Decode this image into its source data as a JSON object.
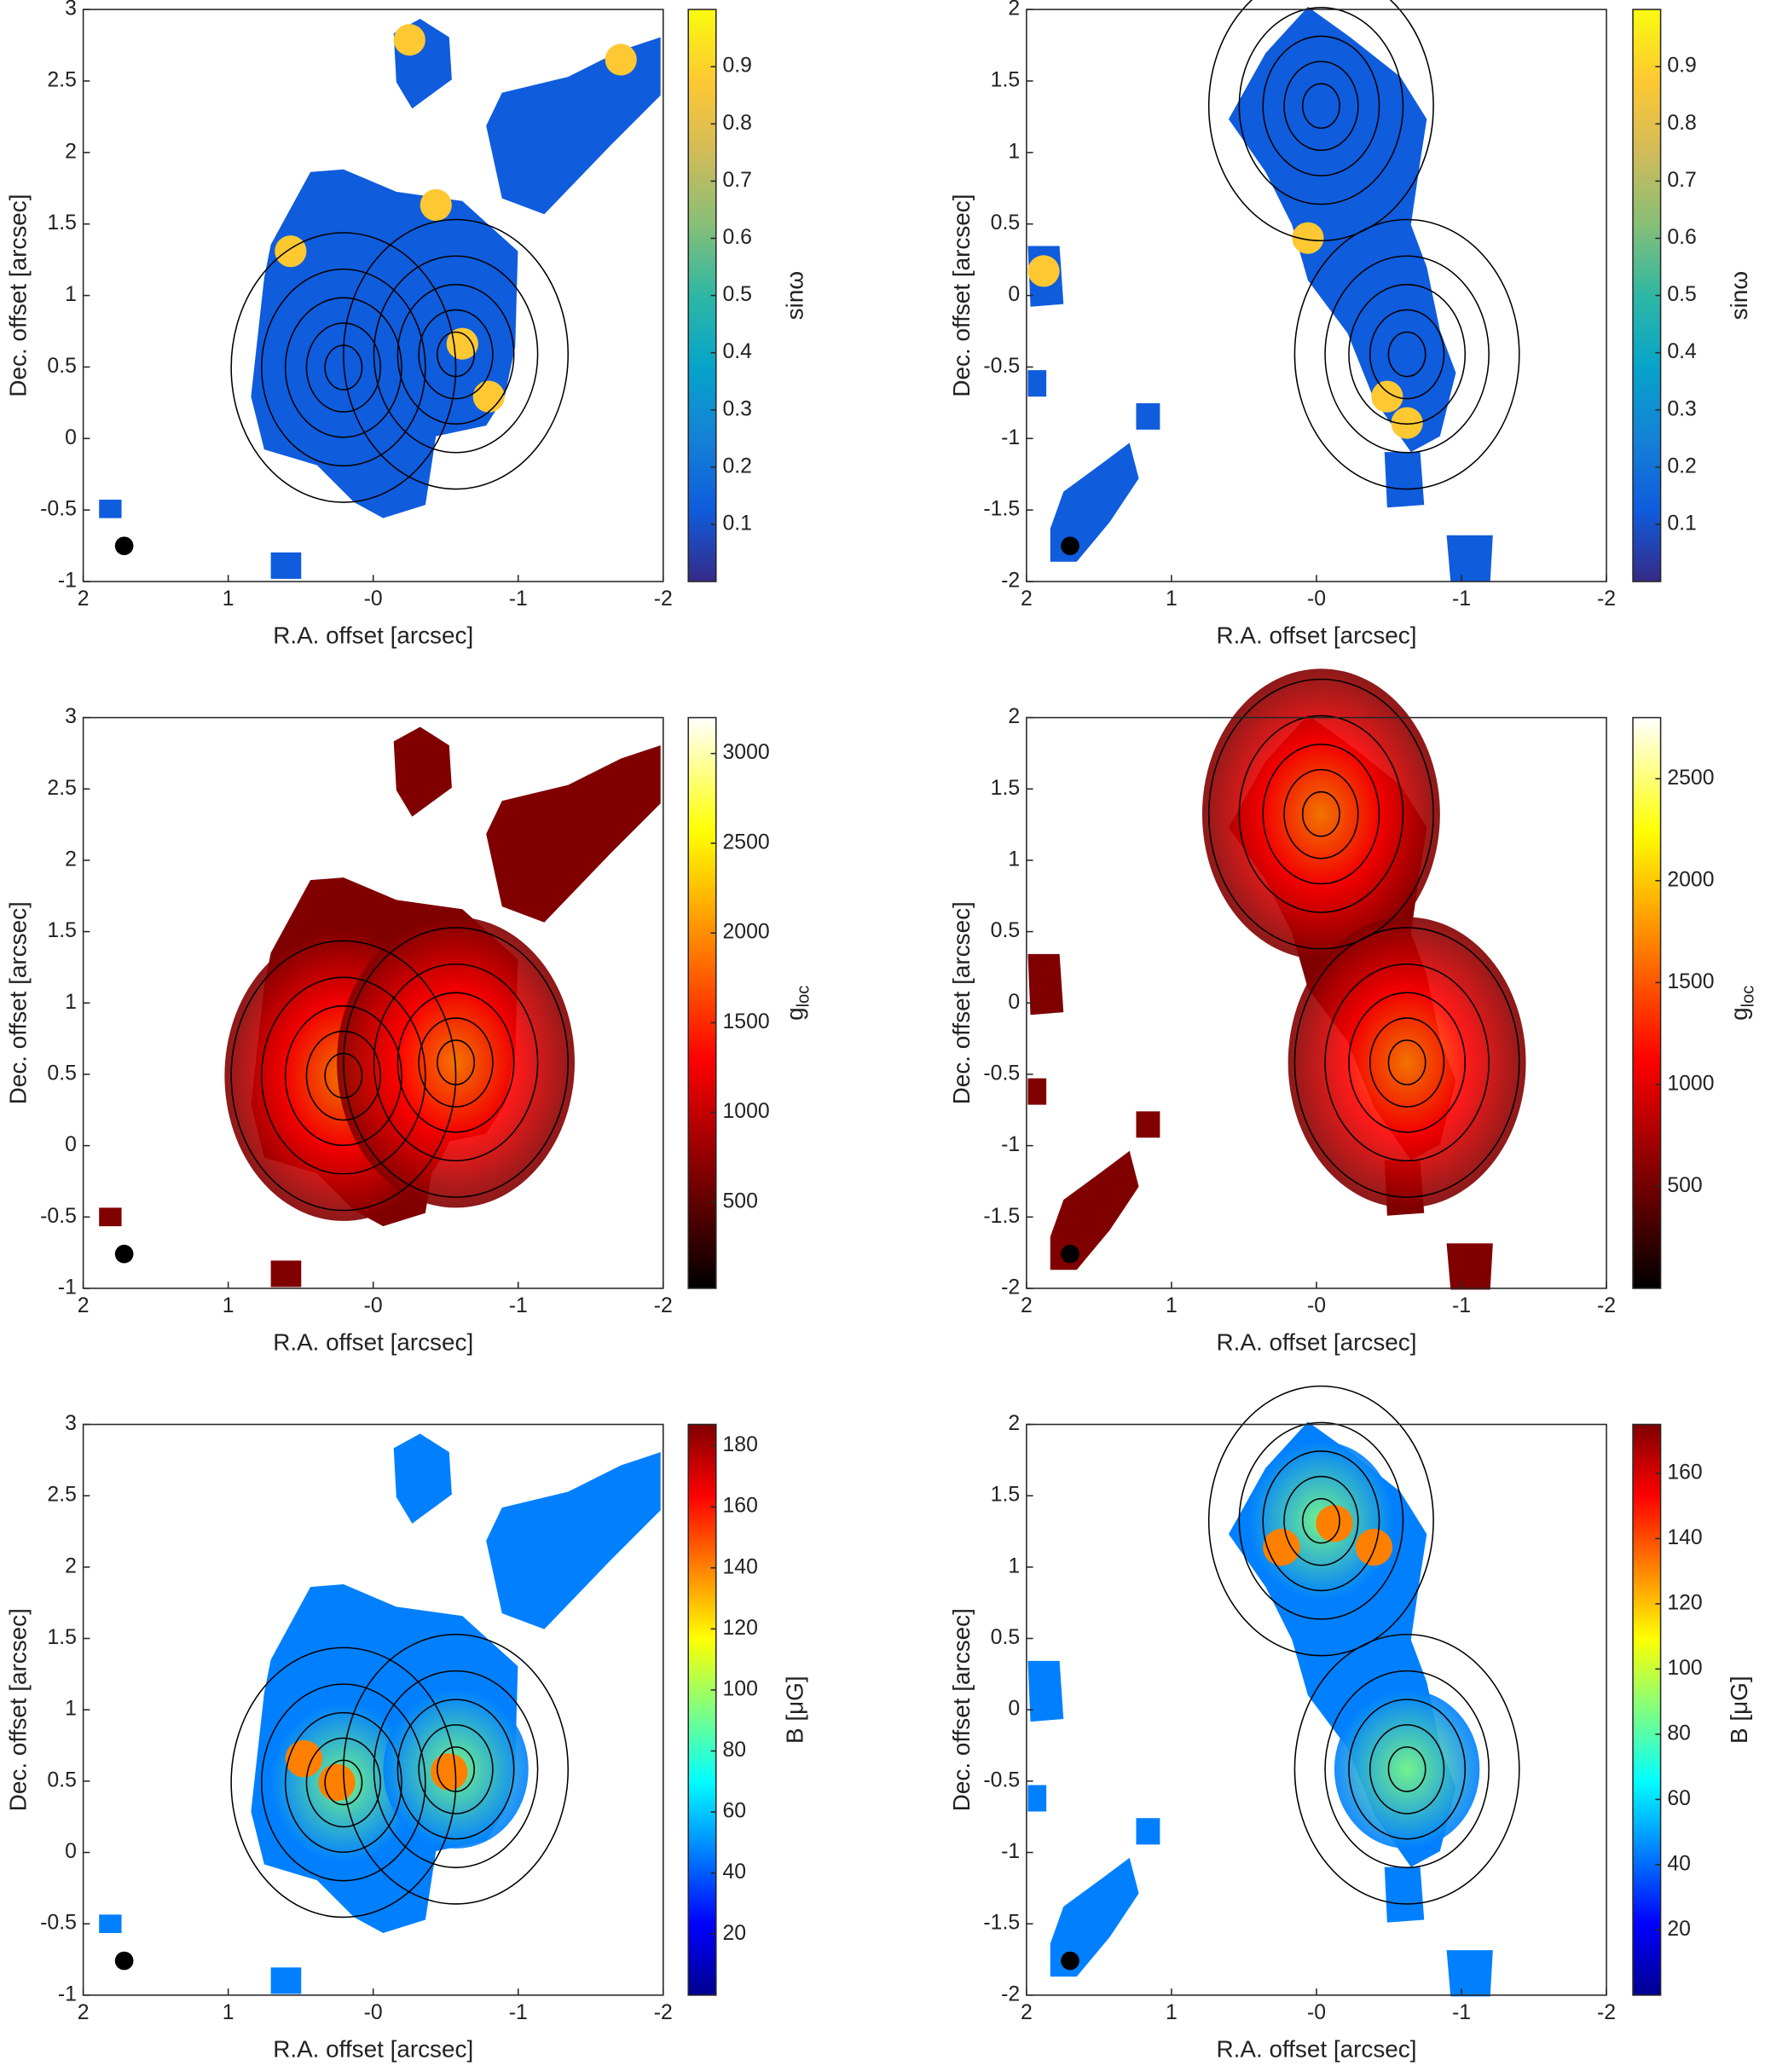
{
  "chart_data": [
    {
      "type": "heatmap",
      "xlabel": "R.A. offset [arcsec]",
      "ylabel": "Dec. offset [arcsec]",
      "colorbar_label": "sinω",
      "xlim": [
        2,
        -2
      ],
      "ylim": [
        -1,
        3
      ],
      "xticks": [
        2,
        1,
        {
          "value": 0,
          "label": "-0"
        },
        -1,
        -2
      ],
      "yticks": [
        -1,
        -0.5,
        0,
        0.5,
        1,
        1.5,
        2,
        2.5,
        3
      ],
      "clim": [
        0,
        1
      ],
      "cticks": [
        0.1,
        0.2,
        0.3,
        0.4,
        0.5,
        0.6,
        0.7,
        0.8,
        0.9
      ],
      "colormap": [
        "#352a87",
        "#0f5cdd",
        "#1481d6",
        "#06a4ca",
        "#2eb7a4",
        "#87bf77",
        "#d1bb59",
        "#fec832",
        "#f9fb0e"
      ]
    },
    {
      "type": "heatmap",
      "xlabel": "R.A. offset [arcsec]",
      "ylabel": "Dec. offset [arcsec]",
      "colorbar_label": "sinω",
      "xlim": [
        2,
        -2
      ],
      "ylim": [
        -2,
        2
      ],
      "xticks": [
        2,
        1,
        {
          "value": 0,
          "label": "-0"
        },
        -1,
        -2
      ],
      "yticks": [
        -2,
        -1.5,
        -1,
        -0.5,
        0,
        0.5,
        1,
        1.5,
        2
      ],
      "clim": [
        0,
        1
      ],
      "cticks": [
        0.1,
        0.2,
        0.3,
        0.4,
        0.5,
        0.6,
        0.7,
        0.8,
        0.9
      ],
      "colormap": [
        "#352a87",
        "#0f5cdd",
        "#1481d6",
        "#06a4ca",
        "#2eb7a4",
        "#87bf77",
        "#d1bb59",
        "#fec832",
        "#f9fb0e"
      ]
    },
    {
      "type": "heatmap",
      "xlabel": "R.A. offset [arcsec]",
      "ylabel": "Dec. offset [arcsec]",
      "colorbar_label": "g_loc",
      "xlim": [
        2,
        -2
      ],
      "ylim": [
        -1,
        3
      ],
      "xticks": [
        2,
        1,
        {
          "value": 0,
          "label": "-0"
        },
        -1,
        -2
      ],
      "yticks": [
        -1,
        -0.5,
        0,
        0.5,
        1,
        1.5,
        2,
        2.5,
        3
      ],
      "clim": [
        20,
        3200
      ],
      "cticks": [
        500,
        1000,
        1500,
        2000,
        2500,
        3000
      ],
      "colormap": [
        "#000000",
        "#800000",
        "#ff0000",
        "#ff8000",
        "#ffff00",
        "#ffffff"
      ]
    },
    {
      "type": "heatmap",
      "xlabel": "R.A. offset [arcsec]",
      "ylabel": "Dec. offset [arcsec]",
      "colorbar_label": "g_loc",
      "xlim": [
        2,
        -2
      ],
      "ylim": [
        -2,
        2
      ],
      "xticks": [
        2,
        1,
        {
          "value": 0,
          "label": "-0"
        },
        -1,
        -2
      ],
      "yticks": [
        -2,
        -1.5,
        -1,
        -0.5,
        0,
        0.5,
        1,
        1.5,
        2
      ],
      "clim": [
        0,
        2800
      ],
      "cticks": [
        500,
        1000,
        1500,
        2000,
        2500
      ],
      "colormap": [
        "#000000",
        "#800000",
        "#ff0000",
        "#ff8000",
        "#ffff00",
        "#ffffff"
      ]
    },
    {
      "type": "heatmap",
      "xlabel": "R.A. offset [arcsec]",
      "ylabel": "Dec. offset [arcsec]",
      "colorbar_label": "B [μG]",
      "xlim": [
        2,
        -2
      ],
      "ylim": [
        -1,
        3
      ],
      "xticks": [
        2,
        1,
        {
          "value": 0,
          "label": "-0"
        },
        -1,
        -2
      ],
      "yticks": [
        -1,
        -0.5,
        0,
        0.5,
        1,
        1.5,
        2,
        2.5,
        3
      ],
      "clim": [
        0,
        187
      ],
      "cticks": [
        20,
        40,
        60,
        80,
        100,
        120,
        140,
        160,
        180
      ],
      "colormap": [
        "#00008f",
        "#0000ff",
        "#0080ff",
        "#00ffff",
        "#80ff80",
        "#ffff00",
        "#ff8000",
        "#ff0000",
        "#800000"
      ]
    },
    {
      "type": "heatmap",
      "xlabel": "R.A. offset [arcsec]",
      "ylabel": "Dec. offset [arcsec]",
      "colorbar_label": "B [μG]",
      "xlim": [
        2,
        -2
      ],
      "ylim": [
        -2,
        2
      ],
      "xticks": [
        2,
        1,
        {
          "value": 0,
          "label": "-0"
        },
        -1,
        -2
      ],
      "yticks": [
        -2,
        -1.5,
        -1,
        -0.5,
        0,
        0.5,
        1,
        1.5,
        2
      ],
      "clim": [
        0,
        175
      ],
      "cticks": [
        20,
        40,
        60,
        80,
        100,
        120,
        140,
        160
      ],
      "colormap": [
        "#00008f",
        "#0000ff",
        "#0080ff",
        "#00ffff",
        "#80ff80",
        "#ffff00",
        "#ff8000",
        "#ff0000",
        "#800000"
      ]
    }
  ]
}
